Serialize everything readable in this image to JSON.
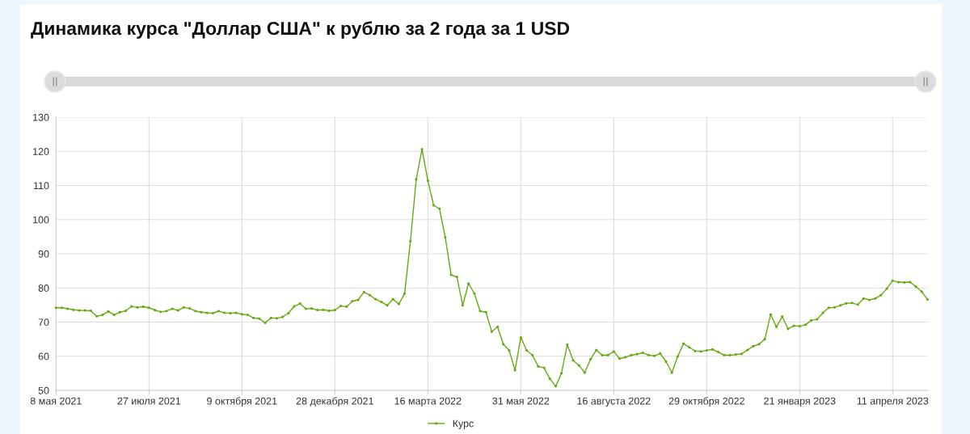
{
  "chart_data": {
    "type": "line",
    "title": "Динамика курса \"Доллар США\" к рублю за 2 года за 1 USD",
    "categories": [
      "8 мая 2021",
      null,
      null,
      null,
      null,
      null,
      null,
      null,
      null,
      null,
      null,
      null,
      null,
      null,
      null,
      null,
      "27 июля 2021",
      null,
      null,
      null,
      null,
      null,
      null,
      null,
      null,
      null,
      null,
      null,
      null,
      null,
      null,
      null,
      "9 октября 2021",
      null,
      null,
      null,
      null,
      null,
      null,
      null,
      null,
      null,
      null,
      null,
      null,
      null,
      null,
      null,
      "28 декабря 2021",
      null,
      null,
      null,
      null,
      null,
      null,
      null,
      null,
      null,
      null,
      null,
      null,
      null,
      null,
      null,
      "16 марта 2022",
      null,
      null,
      null,
      null,
      null,
      null,
      null,
      null,
      null,
      null,
      null,
      null,
      null,
      null,
      null,
      "31 мая 2022",
      null,
      null,
      null,
      null,
      null,
      null,
      null,
      null,
      null,
      null,
      null,
      null,
      null,
      null,
      null,
      "16 августа 2022",
      null,
      null,
      null,
      null,
      null,
      null,
      null,
      null,
      null,
      null,
      null,
      null,
      null,
      null,
      null,
      "29 октября 2022",
      null,
      null,
      null,
      null,
      null,
      null,
      null,
      null,
      null,
      null,
      null,
      null,
      null,
      null,
      null,
      "21 января 2023",
      null,
      null,
      null,
      null,
      null,
      null,
      null,
      null,
      null,
      null,
      null,
      null,
      null,
      null,
      null,
      "11 апреля 2023",
      null,
      null,
      null,
      null,
      null,
      null
    ],
    "series": [
      {
        "name": "Курс",
        "color": "#66aa11",
        "values": [
          74.2,
          74.2,
          73.9,
          73.6,
          73.4,
          73.4,
          73.3,
          71.7,
          72.1,
          73.1,
          72.1,
          72.9,
          73.3,
          74.6,
          74.3,
          74.5,
          74.2,
          73.5,
          73.0,
          73.2,
          73.9,
          73.4,
          74.3,
          74.0,
          73.2,
          72.9,
          72.7,
          72.6,
          73.2,
          72.7,
          72.6,
          72.7,
          72.3,
          72.1,
          71.2,
          71.0,
          69.8,
          71.2,
          71.1,
          71.5,
          72.6,
          74.6,
          75.4,
          73.9,
          74.0,
          73.5,
          73.6,
          73.3,
          73.5,
          74.7,
          74.5,
          76.1,
          76.5,
          78.8,
          77.9,
          76.7,
          75.9,
          74.9,
          76.7,
          75.3,
          78.3,
          93.7,
          111.8,
          120.6,
          111.4,
          104.2,
          103.2,
          94.8,
          83.8,
          83.2,
          74.9,
          81.3,
          78.4,
          73.2,
          72.9,
          67.2,
          68.6,
          63.5,
          61.7,
          55.9,
          65.5,
          61.7,
          60.3,
          57.0,
          56.6,
          53.4,
          51.2,
          55.0,
          63.4,
          58.8,
          57.3,
          55.2,
          59.1,
          61.8,
          60.3,
          60.3,
          61.4,
          59.3,
          59.7,
          60.3,
          60.6,
          61.0,
          60.3,
          60.1,
          60.8,
          58.4,
          55.2,
          59.9,
          63.7,
          62.6,
          61.5,
          61.4,
          61.7,
          62.0,
          61.2,
          60.3,
          60.3,
          60.5,
          60.7,
          61.8,
          62.9,
          63.5,
          65.0,
          72.2,
          68.6,
          71.6,
          68.0,
          68.9,
          68.8,
          69.2,
          70.5,
          70.8,
          72.7,
          74.2,
          74.3,
          74.9,
          75.5,
          75.6,
          75.1,
          76.9,
          76.5,
          76.9,
          77.9,
          79.8,
          82.1,
          81.7,
          81.6,
          81.7,
          80.4,
          78.9,
          76.6
        ]
      }
    ],
    "ylim": [
      50,
      130
    ],
    "yticks": [
      50,
      60,
      70,
      80,
      90,
      100,
      110,
      120,
      130
    ],
    "grid": true,
    "legend": "bottom",
    "marker": "circle",
    "line_style": "solid"
  }
}
